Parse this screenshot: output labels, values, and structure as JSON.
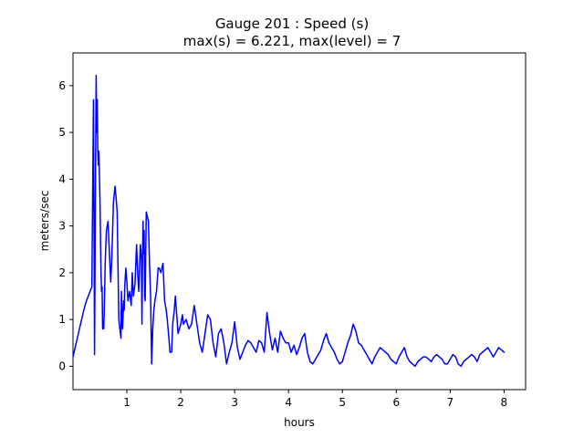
{
  "chart_data": {
    "type": "line",
    "title": "Gauge 201 : Speed (s)",
    "subtitle": "max(s) =   6.221,    max(level) = 7",
    "xlabel": "hours",
    "ylabel": "meters/sec",
    "xlim": [
      0.0,
      8.4
    ],
    "ylim": [
      -0.5,
      6.7
    ],
    "x_ticks": [
      1,
      2,
      3,
      4,
      5,
      6,
      7,
      8
    ],
    "y_ticks": [
      0,
      1,
      2,
      3,
      4,
      5,
      6
    ],
    "x_tick_labels": [
      "1",
      "2",
      "3",
      "4",
      "5",
      "6",
      "7",
      "8"
    ],
    "y_tick_labels": [
      "0",
      "1",
      "2",
      "3",
      "4",
      "5",
      "6"
    ],
    "grid": false,
    "legend": "none",
    "colors": {
      "line": "#0000ff",
      "axes": "#000000",
      "background": "#ffffff"
    },
    "series": [
      {
        "x": [
          0.0,
          0.05,
          0.1,
          0.15,
          0.2,
          0.25,
          0.3,
          0.35,
          0.38,
          0.4,
          0.42,
          0.43,
          0.44,
          0.45,
          0.46,
          0.47,
          0.48,
          0.5,
          0.52,
          0.53,
          0.54,
          0.55,
          0.57,
          0.58,
          0.6,
          0.62,
          0.65,
          0.7,
          0.72,
          0.75,
          0.78,
          0.8,
          0.82,
          0.85,
          0.87,
          0.89,
          0.9,
          0.92,
          0.94,
          0.95,
          0.96,
          0.98,
          1.0,
          1.02,
          1.05,
          1.08,
          1.1,
          1.12,
          1.15,
          1.18,
          1.2,
          1.22,
          1.25,
          1.27,
          1.28,
          1.29,
          1.3,
          1.31,
          1.32,
          1.33,
          1.34,
          1.35,
          1.36,
          1.38,
          1.4,
          1.42,
          1.44,
          1.46,
          1.48,
          1.5,
          1.52,
          1.55,
          1.58,
          1.6,
          1.63,
          1.67,
          1.7,
          1.73,
          1.75,
          1.78,
          1.8,
          1.83,
          1.85,
          1.88,
          1.9,
          1.95,
          2.0,
          2.03,
          2.05,
          2.1,
          2.15,
          2.2,
          2.25,
          2.3,
          2.35,
          2.4,
          2.45,
          2.5,
          2.55,
          2.6,
          2.65,
          2.7,
          2.75,
          2.8,
          2.85,
          2.9,
          2.95,
          3.0,
          3.05,
          3.1,
          3.15,
          3.2,
          3.25,
          3.3,
          3.35,
          3.4,
          3.45,
          3.5,
          3.55,
          3.6,
          3.65,
          3.7,
          3.75,
          3.8,
          3.85,
          3.9,
          3.95,
          4.0,
          4.05,
          4.1,
          4.15,
          4.2,
          4.25,
          4.3,
          4.35,
          4.4,
          4.45,
          4.5,
          4.55,
          4.6,
          4.65,
          4.7,
          4.75,
          4.8,
          4.85,
          4.9,
          4.95,
          5.0,
          5.05,
          5.1,
          5.15,
          5.2,
          5.25,
          5.3,
          5.35,
          5.4,
          5.45,
          5.5,
          5.55,
          5.6,
          5.65,
          5.7,
          5.75,
          5.8,
          5.85,
          5.9,
          5.95,
          6.0,
          6.05,
          6.1,
          6.15,
          6.2,
          6.25,
          6.3,
          6.35,
          6.4,
          6.45,
          6.5,
          6.55,
          6.6,
          6.65,
          6.7,
          6.75,
          6.8,
          6.85,
          6.9,
          6.95,
          7.0,
          7.05,
          7.1,
          7.15,
          7.2,
          7.25,
          7.3,
          7.35,
          7.4,
          7.45,
          7.5,
          7.55,
          7.6,
          7.65,
          7.7,
          7.75,
          7.8,
          7.85,
          7.9,
          7.95,
          8.0
        ],
        "y": [
          0.2,
          0.45,
          0.7,
          0.95,
          1.2,
          1.4,
          1.55,
          1.7,
          5.7,
          0.25,
          4.5,
          6.22,
          5.0,
          5.7,
          4.6,
          4.3,
          4.6,
          3.6,
          2.0,
          1.6,
          1.7,
          0.8,
          0.8,
          1.2,
          2.3,
          2.9,
          3.1,
          1.8,
          2.3,
          3.5,
          3.85,
          3.6,
          3.3,
          1.0,
          0.8,
          0.6,
          1.6,
          0.8,
          1.4,
          1.2,
          1.7,
          2.1,
          1.8,
          1.4,
          1.6,
          1.3,
          2.0,
          1.5,
          1.75,
          2.6,
          2.0,
          1.6,
          2.6,
          2.3,
          0.9,
          2.3,
          3.1,
          2.4,
          2.9,
          1.5,
          1.4,
          2.4,
          3.3,
          3.2,
          3.1,
          2.2,
          1.5,
          0.05,
          0.8,
          1.2,
          1.4,
          1.6,
          2.1,
          2.1,
          2.0,
          2.2,
          1.4,
          1.2,
          1.0,
          0.6,
          0.3,
          0.3,
          0.9,
          1.2,
          1.5,
          0.7,
          0.9,
          1.1,
          0.9,
          1.0,
          0.8,
          0.9,
          1.3,
          0.9,
          0.5,
          0.3,
          0.7,
          1.1,
          1.0,
          0.5,
          0.2,
          0.7,
          0.8,
          0.5,
          0.05,
          0.3,
          0.5,
          0.95,
          0.4,
          0.15,
          0.3,
          0.45,
          0.55,
          0.5,
          0.4,
          0.3,
          0.55,
          0.5,
          0.3,
          1.15,
          0.7,
          0.35,
          0.6,
          0.3,
          0.75,
          0.6,
          0.5,
          0.5,
          0.3,
          0.45,
          0.25,
          0.4,
          0.6,
          0.7,
          0.3,
          0.1,
          0.05,
          0.15,
          0.25,
          0.35,
          0.55,
          0.7,
          0.5,
          0.4,
          0.3,
          0.15,
          0.05,
          0.1,
          0.3,
          0.5,
          0.65,
          0.9,
          0.75,
          0.5,
          0.45,
          0.35,
          0.25,
          0.15,
          0.05,
          0.2,
          0.3,
          0.4,
          0.35,
          0.3,
          0.25,
          0.15,
          0.1,
          0.05,
          0.2,
          0.3,
          0.4,
          0.2,
          0.1,
          0.05,
          0.0,
          0.1,
          0.15,
          0.2,
          0.2,
          0.15,
          0.1,
          0.2,
          0.25,
          0.2,
          0.15,
          0.05,
          0.05,
          0.15,
          0.25,
          0.2,
          0.05,
          0.0,
          0.1,
          0.15,
          0.2,
          0.25,
          0.2,
          0.1,
          0.25,
          0.3,
          0.35,
          0.4,
          0.3,
          0.2,
          0.3,
          0.4,
          0.35,
          0.3
        ]
      }
    ]
  }
}
